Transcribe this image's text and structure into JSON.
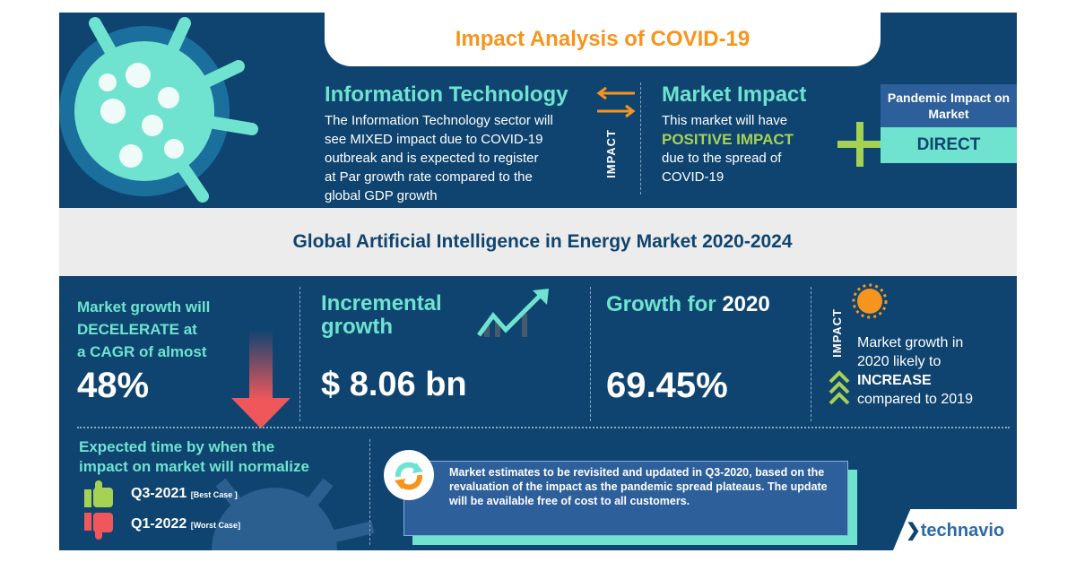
{
  "header": {
    "title": "Impact Analysis of COVID-19"
  },
  "sector": {
    "title": "Information Technology",
    "text": [
      "The Information Technology sector will",
      "see MIXED  impact due to COVID-19",
      "outbreak and is expected to register",
      "at Par growth rate compared to the",
      "global GDP growth"
    ]
  },
  "impact_label": "IMPACT",
  "market_impact": {
    "title": "Market Impact",
    "line1": "This market will have",
    "highlight": "POSITIVE IMPACT",
    "line3": "due to the spread of",
    "line4": "COVID-19"
  },
  "pandemic": {
    "title": "Pandemic Impact on Market",
    "value": "DIRECT"
  },
  "market_title": "Global Artificial Intelligence in Energy Market 2020-2024",
  "cagr": {
    "lines": [
      "Market growth will",
      "DECELERATE at",
      "a CAGR of almost"
    ],
    "value": "48%"
  },
  "incremental": {
    "lines": [
      "Incremental",
      "growth"
    ],
    "value": "$ 8.06 bn"
  },
  "growth2020": {
    "label": "Growth for ",
    "year": "2020",
    "value": "69.45%"
  },
  "impact2020": {
    "label": "IMPACT",
    "line1": "Market growth in",
    "line2": "2020 likely to",
    "highlight": "INCREASE",
    "line4": "compared to 2019"
  },
  "normalize": {
    "title": [
      "Expected time by when the",
      "impact on market will normalize"
    ],
    "best": {
      "value": "Q3-2021",
      "note": "[Best Case ]"
    },
    "worst": {
      "value": "Q1-2022",
      "note": "[Worst Case]"
    }
  },
  "note": "Market estimates to be revisited and updated in Q3-2020, based on the revaluation of the impact as the pandemic spread plateaus. The update will be available free of cost to all customers.",
  "brand": "technavio",
  "colors": {
    "navy": "#0f4470",
    "teal": "#6fe3cf",
    "orange": "#f7941d",
    "green": "#a6d254",
    "red": "#f0575a"
  }
}
